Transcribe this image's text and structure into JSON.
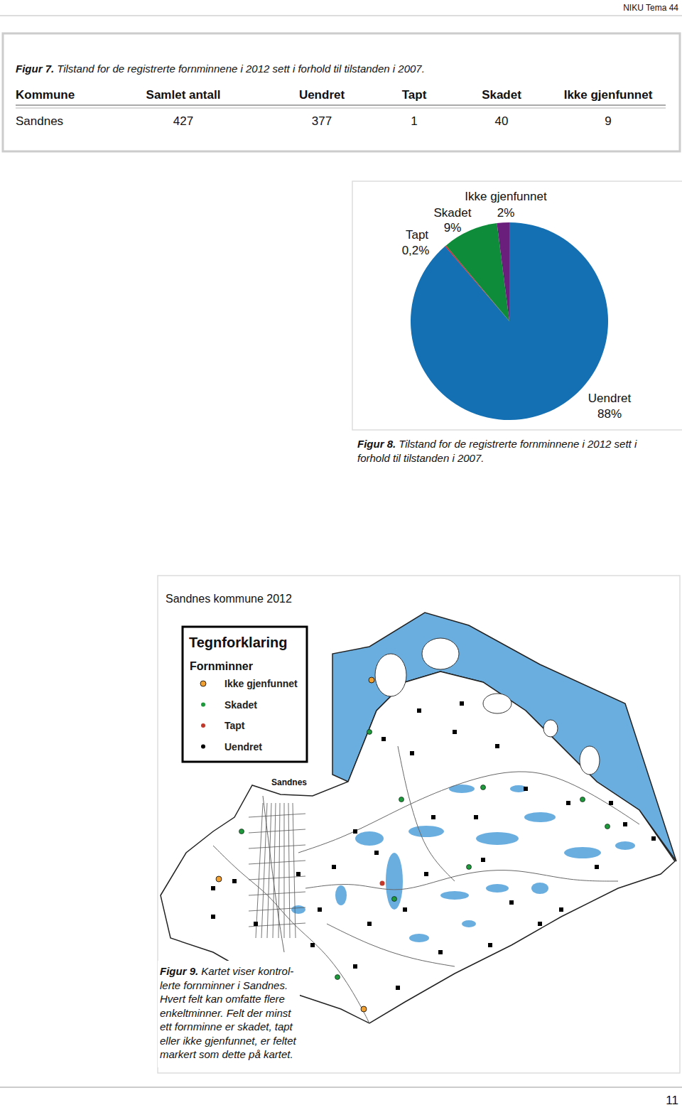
{
  "header": "NIKU Tema 44",
  "page_number": "11",
  "table_figure": {
    "label": "Figur 7.",
    "caption": "Tilstand for de registrerte fornminnene i 2012 sett i forhold til tilstanden i 2007.",
    "columns": [
      "Kommune",
      "Samlet antall",
      "Uendret",
      "Tapt",
      "Skadet",
      "Ikke gjenfunnet"
    ],
    "rows": [
      [
        "Sandnes",
        427,
        377,
        1,
        40,
        9
      ]
    ]
  },
  "chart_data": {
    "type": "pie",
    "categories": [
      "Uendret",
      "Tapt",
      "Skadet",
      "Ikke gjenfunnet"
    ],
    "values": [
      88,
      0.2,
      9,
      2
    ],
    "value_labels": [
      "88%",
      "0,2%",
      "9%",
      "2%"
    ],
    "colors": [
      "#1470b2",
      "#d7192a",
      "#0e8c3a",
      "#6b1f7c"
    ],
    "data_labels": true
  },
  "pie_figure": {
    "label": "Figur 8.",
    "caption_lines": [
      "Tilstand for de registrerte fornminnene i 2012 sett i",
      "forhold til tilstanden i 2007."
    ]
  },
  "map": {
    "title": "Sandnes kommune 2012",
    "legend_title": "Tegnforklaring",
    "legend_subtitle": "Fornminner",
    "legend_items": [
      "Ikke gjenfunnet",
      "Skadet",
      "Tapt",
      "Uendret"
    ],
    "place_label": "Sandnes"
  },
  "map_figure": {
    "label": "Figur 9.",
    "caption_lines": [
      "Kartet viser kontrol-",
      "lerte fornminner i Sandnes.",
      "Hvert felt kan omfatte flere",
      "enkeltminner. Felt der minst",
      "ett fornminne er skadet, tapt",
      "eller ikke gjenfunnet, er feltet",
      "markert som dette på kartet."
    ]
  }
}
